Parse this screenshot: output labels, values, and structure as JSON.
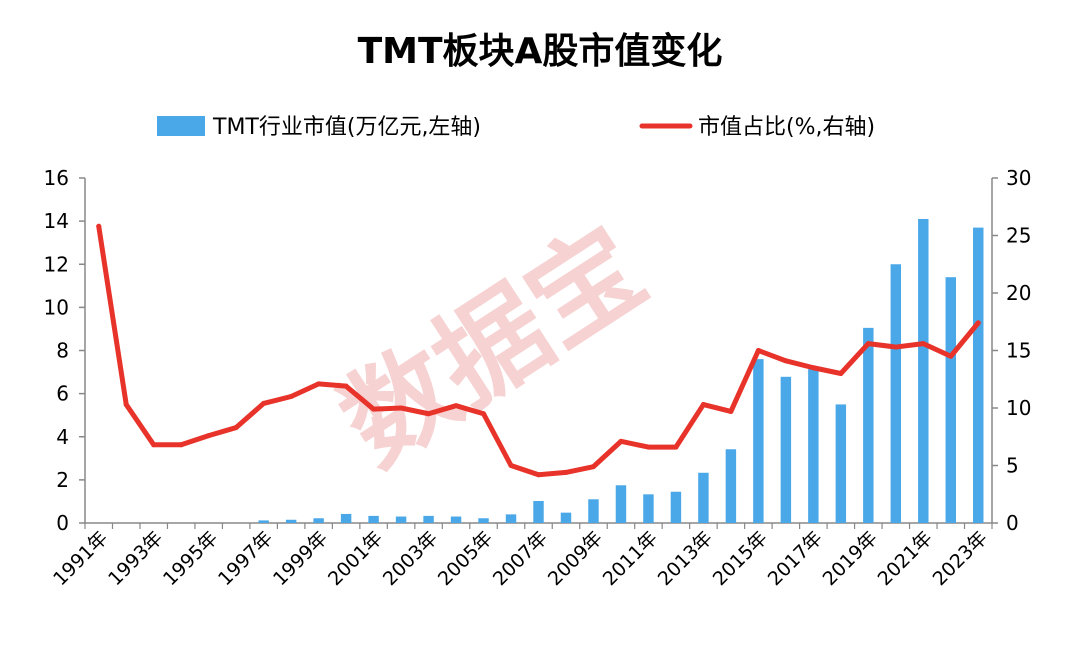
{
  "title": "TMT板块A股市值变化",
  "watermark": "数据宝",
  "chart_data": {
    "type": "bar+line",
    "title": "TMT板块A股市值变化",
    "legend_position": "top",
    "grid": false,
    "categories": [
      "1991年",
      "1992年",
      "1993年",
      "1994年",
      "1995年",
      "1996年",
      "1997年",
      "1998年",
      "1999年",
      "2000年",
      "2001年",
      "2002年",
      "2003年",
      "2004年",
      "2005年",
      "2006年",
      "2007年",
      "2008年",
      "2009年",
      "2010年",
      "2011年",
      "2012年",
      "2013年",
      "2014年",
      "2015年",
      "2016年",
      "2017年",
      "2018年",
      "2019年",
      "2020年",
      "2021年",
      "2022年",
      "2023年"
    ],
    "x_tick_labels": [
      "1991年",
      "1993年",
      "1995年",
      "1997年",
      "1999年",
      "2001年",
      "2003年",
      "2005年",
      "2007年",
      "2009年",
      "2011年",
      "2013年",
      "2015年",
      "2017年",
      "2019年",
      "2021年",
      "2023年"
    ],
    "series": [
      {
        "name": "TMT行业市值(万亿元,左轴)",
        "type": "bar",
        "axis": "left",
        "color": "#4aa8e8",
        "values": [
          0,
          0,
          0,
          0,
          0,
          0,
          0.12,
          0.15,
          0.22,
          0.42,
          0.33,
          0.3,
          0.33,
          0.3,
          0.22,
          0.4,
          1.02,
          0.48,
          1.1,
          1.75,
          1.33,
          1.45,
          2.33,
          3.42,
          7.6,
          6.78,
          7.25,
          5.5,
          9.05,
          12.0,
          14.1,
          11.4,
          13.7
        ]
      },
      {
        "name": "市值占比(%,右轴)",
        "type": "line",
        "axis": "right",
        "color": "#e8332a",
        "values": [
          25.8,
          10.3,
          6.8,
          6.8,
          7.6,
          8.3,
          10.4,
          11.0,
          12.1,
          11.9,
          9.9,
          10.0,
          9.5,
          10.2,
          9.5,
          5.0,
          4.2,
          4.4,
          4.9,
          7.1,
          6.6,
          6.6,
          10.3,
          9.7,
          15.0,
          14.1,
          13.5,
          13.0,
          15.6,
          15.3,
          15.6,
          14.5,
          17.4
        ]
      }
    ],
    "y_left": {
      "min": 0,
      "max": 16,
      "ticks": [
        "0",
        "2",
        "4",
        "6",
        "8",
        "10",
        "12",
        "14",
        "16"
      ]
    },
    "y_right": {
      "min": 0,
      "max": 30,
      "ticks": [
        "0",
        "5",
        "10",
        "15",
        "20",
        "25",
        "30"
      ]
    },
    "axis_color": "#888888"
  }
}
